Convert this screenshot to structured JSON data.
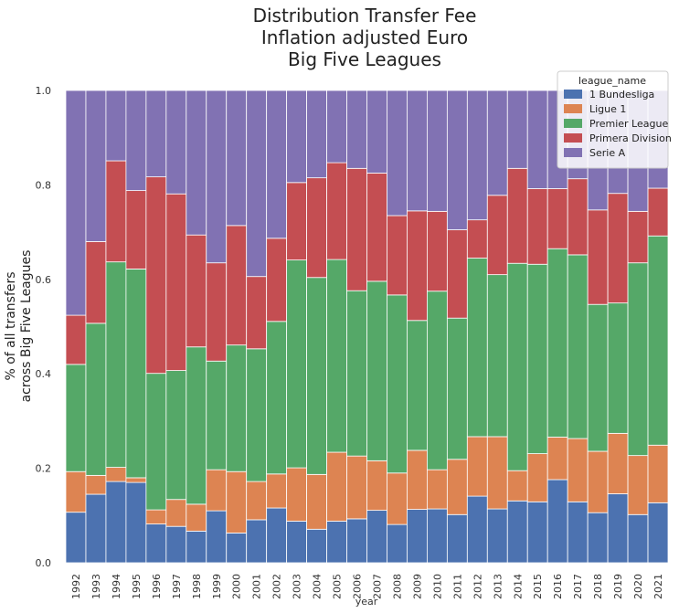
{
  "chart_data": {
    "type": "bar",
    "stacked": true,
    "title": [
      "Distribution Transfer Fee",
      "Inflation adjusted Euro",
      "Big Five Leagues"
    ],
    "xlabel": "year",
    "ylabel": [
      "% of all transfers",
      "across Big Five Leagues"
    ],
    "ylim": [
      0,
      1
    ],
    "yticks": [
      "0.0",
      "0.2",
      "0.4",
      "0.6",
      "0.8",
      "1.0"
    ],
    "legend_title": "league_name",
    "legend_position": "top-right",
    "categories": [
      "1992",
      "1993",
      "1994",
      "1995",
      "1996",
      "1997",
      "1998",
      "1999",
      "2000",
      "2001",
      "2002",
      "2003",
      "2004",
      "2005",
      "2006",
      "2007",
      "2008",
      "2009",
      "2010",
      "2011",
      "2012",
      "2013",
      "2014",
      "2015",
      "2016",
      "2017",
      "2018",
      "2019",
      "2020",
      "2021"
    ],
    "series": [
      {
        "name": "1 Bundesliga",
        "color": "#4c72b0",
        "values": [
          0.107,
          0.145,
          0.172,
          0.17,
          0.082,
          0.077,
          0.067,
          0.11,
          0.063,
          0.091,
          0.116,
          0.088,
          0.071,
          0.088,
          0.093,
          0.111,
          0.081,
          0.113,
          0.114,
          0.102,
          0.141,
          0.114,
          0.131,
          0.129,
          0.176,
          0.129,
          0.106,
          0.146,
          0.102,
          0.127
        ]
      },
      {
        "name": "Ligue 1",
        "color": "#dd8452",
        "values": [
          0.086,
          0.04,
          0.03,
          0.01,
          0.03,
          0.057,
          0.057,
          0.087,
          0.13,
          0.081,
          0.072,
          0.113,
          0.116,
          0.146,
          0.133,
          0.105,
          0.109,
          0.125,
          0.083,
          0.117,
          0.126,
          0.153,
          0.064,
          0.102,
          0.09,
          0.134,
          0.13,
          0.128,
          0.125,
          0.122
        ]
      },
      {
        "name": "Premier League",
        "color": "#55a868",
        "values": [
          0.227,
          0.322,
          0.435,
          0.442,
          0.289,
          0.273,
          0.333,
          0.23,
          0.268,
          0.281,
          0.323,
          0.44,
          0.417,
          0.408,
          0.35,
          0.38,
          0.377,
          0.275,
          0.378,
          0.299,
          0.378,
          0.343,
          0.439,
          0.401,
          0.399,
          0.389,
          0.311,
          0.276,
          0.408,
          0.443
        ]
      },
      {
        "name": "Primera Division",
        "color": "#c44e52",
        "values": [
          0.104,
          0.173,
          0.214,
          0.166,
          0.416,
          0.374,
          0.237,
          0.208,
          0.253,
          0.153,
          0.176,
          0.164,
          0.211,
          0.205,
          0.259,
          0.229,
          0.168,
          0.232,
          0.169,
          0.187,
          0.081,
          0.168,
          0.201,
          0.16,
          0.127,
          0.161,
          0.2,
          0.232,
          0.109,
          0.101
        ]
      },
      {
        "name": "Serie A",
        "color": "#8172b3",
        "values": [
          0.476,
          0.32,
          0.149,
          0.212,
          0.183,
          0.219,
          0.306,
          0.365,
          0.286,
          0.394,
          0.313,
          0.195,
          0.185,
          0.153,
          0.165,
          0.175,
          0.265,
          0.255,
          0.256,
          0.295,
          0.274,
          0.222,
          0.165,
          0.208,
          0.208,
          0.187,
          0.253,
          0.218,
          0.256,
          0.207
        ]
      }
    ]
  }
}
